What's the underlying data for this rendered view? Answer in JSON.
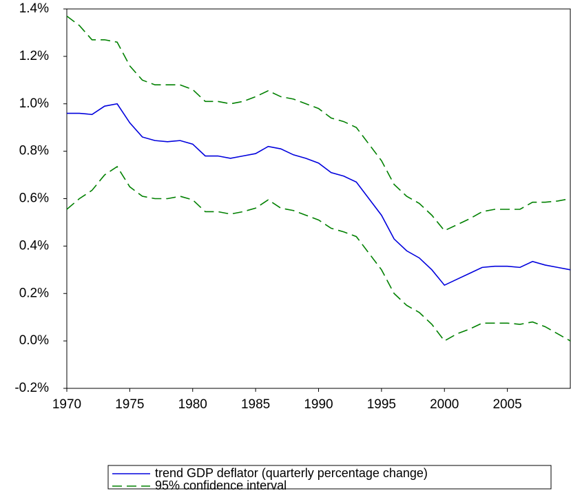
{
  "chart_data": {
    "type": "line",
    "x": [
      1970,
      1971,
      1972,
      1973,
      1974,
      1975,
      1976,
      1977,
      1978,
      1979,
      1980,
      1981,
      1982,
      1983,
      1984,
      1985,
      1986,
      1987,
      1988,
      1989,
      1990,
      1991,
      1992,
      1993,
      1994,
      1995,
      1996,
      1997,
      1998,
      1999,
      2000,
      2001,
      2002,
      2003,
      2004,
      2005,
      2006,
      2007,
      2008,
      2009,
      2010
    ],
    "series": [
      {
        "name": "trend GDP deflator (quarterly percentage change)",
        "color": "#0000dd",
        "dashed": false,
        "values": [
          0.96,
          0.96,
          0.955,
          0.99,
          1.0,
          0.92,
          0.86,
          0.845,
          0.84,
          0.845,
          0.83,
          0.78,
          0.78,
          0.77,
          0.78,
          0.79,
          0.82,
          0.81,
          0.785,
          0.77,
          0.75,
          0.71,
          0.695,
          0.67,
          0.6,
          0.53,
          0.43,
          0.38,
          0.35,
          0.3,
          0.235,
          0.26,
          0.285,
          0.31,
          0.315,
          0.315,
          0.31,
          0.335,
          0.32,
          0.31,
          0.3
        ]
      },
      {
        "name": "95% confidence interval",
        "color": "#008000",
        "dashed": true,
        "values": [
          1.37,
          1.33,
          1.27,
          1.27,
          1.26,
          1.16,
          1.1,
          1.08,
          1.08,
          1.08,
          1.06,
          1.01,
          1.01,
          1.0,
          1.01,
          1.03,
          1.055,
          1.03,
          1.02,
          1.0,
          0.98,
          0.94,
          0.925,
          0.9,
          0.83,
          0.76,
          0.66,
          0.61,
          0.58,
          0.53,
          0.465,
          0.49,
          0.515,
          0.545,
          0.555,
          0.555,
          0.555,
          0.585,
          0.585,
          0.59,
          0.6
        ],
        "lower": [
          0.555,
          0.6,
          0.635,
          0.7,
          0.735,
          0.65,
          0.61,
          0.6,
          0.6,
          0.61,
          0.595,
          0.545,
          0.545,
          0.535,
          0.545,
          0.56,
          0.595,
          0.56,
          0.55,
          0.53,
          0.51,
          0.475,
          0.46,
          0.44,
          0.37,
          0.3,
          0.2,
          0.15,
          0.12,
          0.07,
          0.0,
          0.03,
          0.05,
          0.075,
          0.075,
          0.075,
          0.07,
          0.08,
          0.06,
          0.03,
          0.0
        ]
      }
    ],
    "xlim": [
      1970,
      2010
    ],
    "xticks": [
      1970,
      1975,
      1980,
      1985,
      1990,
      1995,
      2000,
      2005
    ],
    "ylim": [
      -0.2,
      1.4
    ],
    "yticks": [
      {
        "value": -0.2,
        "label": "-0.2%"
      },
      {
        "value": 0,
        "label": "0.0%"
      },
      {
        "value": 0.2,
        "label": "0.2%"
      },
      {
        "value": 0.4,
        "label": "0.4%"
      },
      {
        "value": 0.6,
        "label": "0.6%"
      },
      {
        "value": 0.8,
        "label": "0.8%"
      },
      {
        "value": 1.0,
        "label": "1.0%"
      },
      {
        "value": 1.2,
        "label": "1.2%"
      },
      {
        "value": 1.4,
        "label": "1.4%"
      }
    ],
    "grid": false
  }
}
